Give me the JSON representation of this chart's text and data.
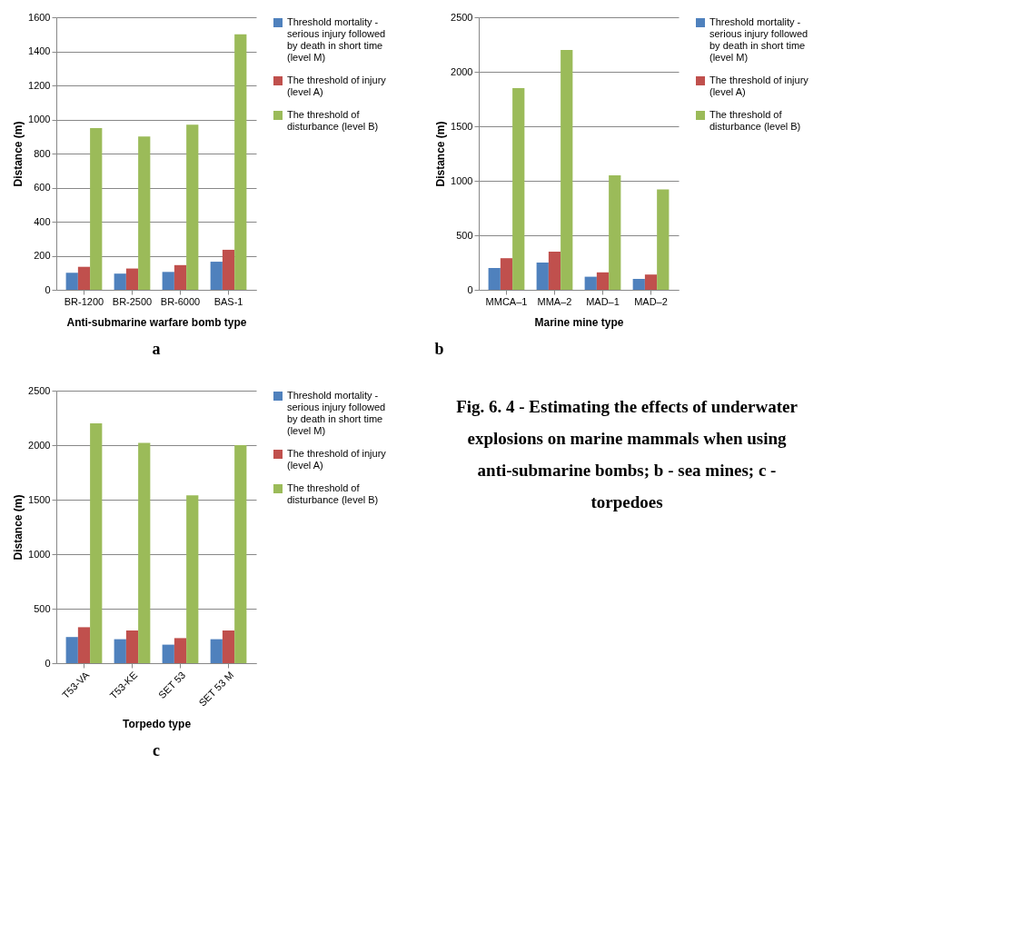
{
  "chart_data": [
    {
      "type": "bar",
      "title": "a",
      "xlabel": "Anti-submarine warfare bomb type",
      "ylabel": "Distance (m)",
      "categories": [
        "BR-1200",
        "BR-2500",
        "BR-6000",
        "BAS-1"
      ],
      "ylim": [
        0,
        1600
      ],
      "yticks": [
        0,
        200,
        400,
        600,
        800,
        1000,
        1200,
        1400,
        1600
      ],
      "grid": "y",
      "legend": "right",
      "series": [
        {
          "name": "Threshold mortality - serious injury  followed by death in short time (level M)",
          "color": "#4f81bd",
          "values": [
            100,
            95,
            105,
            165
          ]
        },
        {
          "name": "The threshold of injury (level A)",
          "color": "#c0504d",
          "values": [
            135,
            125,
            145,
            235
          ]
        },
        {
          "name": "The threshold of disturbance (level B)",
          "color": "#9bbb59",
          "values": [
            950,
            900,
            970,
            1500
          ]
        }
      ]
    },
    {
      "type": "bar",
      "title": "b",
      "xlabel": "Marine mine type",
      "ylabel": "Distance (m)",
      "categories": [
        "MMCA–1",
        "MMA–2",
        "MAD–1",
        "MAD–2"
      ],
      "ylim": [
        0,
        2500
      ],
      "yticks": [
        0,
        500,
        1000,
        1500,
        2000,
        2500
      ],
      "grid": "y",
      "legend": "right",
      "series": [
        {
          "name": "Threshold mortality - serious injury  followed by death in short time (level M)",
          "color": "#4f81bd",
          "values": [
            200,
            250,
            120,
            100
          ]
        },
        {
          "name": "The  threshold of injury (level A)",
          "color": "#c0504d",
          "values": [
            290,
            350,
            160,
            140
          ]
        },
        {
          "name": "The threshold of disturbance (level B)",
          "color": "#9bbb59",
          "values": [
            1850,
            2200,
            1050,
            920
          ]
        }
      ]
    },
    {
      "type": "bar",
      "title": "c",
      "xlabel": "Torpedo type",
      "ylabel": "Distance (m)",
      "categories": [
        "T53-VA",
        "T53-KE",
        "SET 53",
        "SET 53 M"
      ],
      "ylim": [
        0,
        2500
      ],
      "yticks": [
        0,
        500,
        1000,
        1500,
        2000,
        2500
      ],
      "grid": "y",
      "legend": "right",
      "series": [
        {
          "name": "Threshold mortality - serious injury followed by death in short time (level M)",
          "color": "#4f81bd",
          "values": [
            240,
            220,
            170,
            220
          ]
        },
        {
          "name": "The threshold of injury (level A)",
          "color": "#c0504d",
          "values": [
            330,
            300,
            230,
            300
          ]
        },
        {
          "name": "The threshold of disturbance (level B)",
          "color": "#9bbb59",
          "values": [
            2200,
            2020,
            1540,
            2000
          ]
        }
      ]
    },
    {
      "type": "other",
      "annotations": [
        "Fig. 6. 4 - Estimating the effects of underwater",
        "explosions on marine mammals when using",
        "anti-submarine bombs; b - sea mines; c -",
        "torpedoes"
      ]
    }
  ]
}
